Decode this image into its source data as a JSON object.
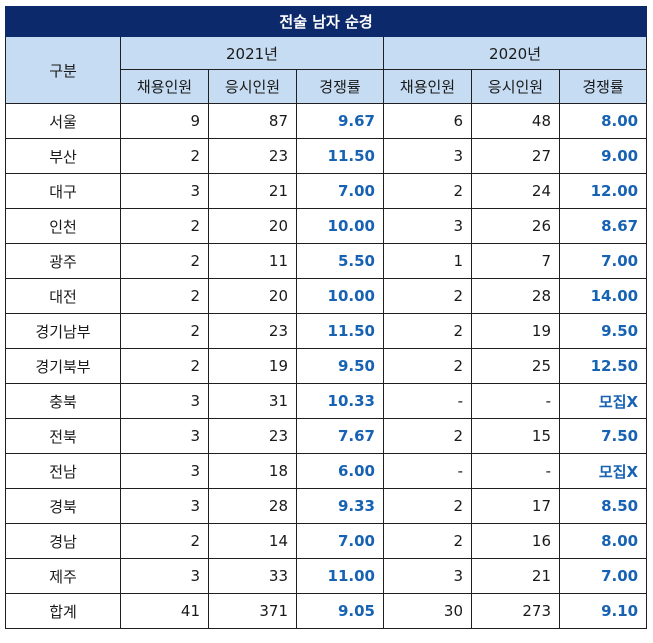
{
  "title": "전술 남자 순경",
  "header": {
    "category": "구분",
    "years": [
      "2021년",
      "2020년"
    ],
    "sub_columns": [
      "채용인원",
      "응시인원",
      "경쟁률"
    ]
  },
  "rows": [
    {
      "region": "서울",
      "y2021": {
        "hired": "9",
        "applicants": "87",
        "rate": "9.67"
      },
      "y2020": {
        "hired": "6",
        "applicants": "48",
        "rate": "8.00"
      }
    },
    {
      "region": "부산",
      "y2021": {
        "hired": "2",
        "applicants": "23",
        "rate": "11.50"
      },
      "y2020": {
        "hired": "3",
        "applicants": "27",
        "rate": "9.00"
      }
    },
    {
      "region": "대구",
      "y2021": {
        "hired": "3",
        "applicants": "21",
        "rate": "7.00"
      },
      "y2020": {
        "hired": "2",
        "applicants": "24",
        "rate": "12.00"
      }
    },
    {
      "region": "인천",
      "y2021": {
        "hired": "2",
        "applicants": "20",
        "rate": "10.00"
      },
      "y2020": {
        "hired": "3",
        "applicants": "26",
        "rate": "8.67"
      }
    },
    {
      "region": "광주",
      "y2021": {
        "hired": "2",
        "applicants": "11",
        "rate": "5.50"
      },
      "y2020": {
        "hired": "1",
        "applicants": "7",
        "rate": "7.00"
      }
    },
    {
      "region": "대전",
      "y2021": {
        "hired": "2",
        "applicants": "20",
        "rate": "10.00"
      },
      "y2020": {
        "hired": "2",
        "applicants": "28",
        "rate": "14.00"
      }
    },
    {
      "region": "경기남부",
      "y2021": {
        "hired": "2",
        "applicants": "23",
        "rate": "11.50"
      },
      "y2020": {
        "hired": "2",
        "applicants": "19",
        "rate": "9.50"
      }
    },
    {
      "region": "경기북부",
      "y2021": {
        "hired": "2",
        "applicants": "19",
        "rate": "9.50"
      },
      "y2020": {
        "hired": "2",
        "applicants": "25",
        "rate": "12.50"
      }
    },
    {
      "region": "충북",
      "y2021": {
        "hired": "3",
        "applicants": "31",
        "rate": "10.33"
      },
      "y2020": {
        "hired": "-",
        "applicants": "-",
        "rate": "모집X"
      }
    },
    {
      "region": "전북",
      "y2021": {
        "hired": "3",
        "applicants": "23",
        "rate": "7.67"
      },
      "y2020": {
        "hired": "2",
        "applicants": "15",
        "rate": "7.50"
      }
    },
    {
      "region": "전남",
      "y2021": {
        "hired": "3",
        "applicants": "18",
        "rate": "6.00"
      },
      "y2020": {
        "hired": "-",
        "applicants": "-",
        "rate": "모집X"
      }
    },
    {
      "region": "경북",
      "y2021": {
        "hired": "3",
        "applicants": "28",
        "rate": "9.33"
      },
      "y2020": {
        "hired": "2",
        "applicants": "17",
        "rate": "8.50"
      }
    },
    {
      "region": "경남",
      "y2021": {
        "hired": "2",
        "applicants": "14",
        "rate": "7.00"
      },
      "y2020": {
        "hired": "2",
        "applicants": "16",
        "rate": "8.00"
      }
    },
    {
      "region": "제주",
      "y2021": {
        "hired": "3",
        "applicants": "33",
        "rate": "11.00"
      },
      "y2020": {
        "hired": "3",
        "applicants": "21",
        "rate": "7.00"
      }
    },
    {
      "region": "합계",
      "y2021": {
        "hired": "41",
        "applicants": "371",
        "rate": "9.05"
      },
      "y2020": {
        "hired": "30",
        "applicants": "273",
        "rate": "9.10"
      }
    }
  ],
  "colors": {
    "title_bg": "#0c2a6b",
    "header_bg": "#c5dcf2",
    "rate_text": "#1762b3"
  }
}
